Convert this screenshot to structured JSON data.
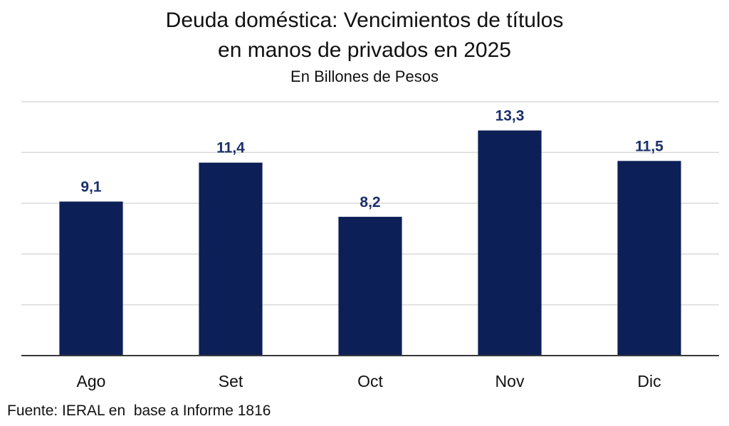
{
  "chart_data": {
    "type": "bar",
    "title_lines": [
      "Deuda doméstica: Vencimientos de títulos",
      "en manos de privados en 2025"
    ],
    "subtitle": "En Billones de Pesos",
    "categories": [
      "Ago",
      "Set",
      "Oct",
      "Nov",
      "Dic"
    ],
    "values": [
      9.1,
      11.4,
      8.2,
      13.3,
      11.5
    ],
    "value_labels": [
      "9,1",
      "11,4",
      "8,2",
      "13,3",
      "11,5"
    ],
    "xlabel": "",
    "ylabel": "",
    "ylim": [
      0,
      15
    ],
    "grid": true,
    "legend": "none",
    "bar_color": "#0d1f57",
    "label_color": "#1b2f6b",
    "source": "Fuente: IERAL en  base a Informe 1816"
  }
}
